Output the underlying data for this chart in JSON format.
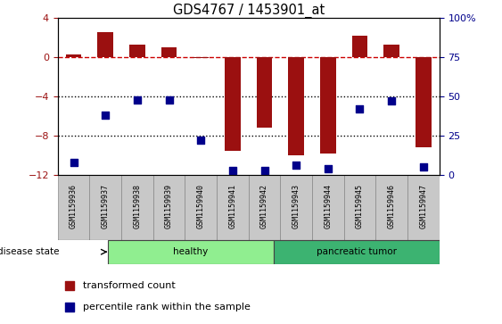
{
  "title": "GDS4767 / 1453901_at",
  "samples": [
    "GSM1159936",
    "GSM1159937",
    "GSM1159938",
    "GSM1159939",
    "GSM1159940",
    "GSM1159941",
    "GSM1159942",
    "GSM1159943",
    "GSM1159944",
    "GSM1159945",
    "GSM1159946",
    "GSM1159947"
  ],
  "transformed_count": [
    0.3,
    2.5,
    1.3,
    1.0,
    -0.05,
    -9.5,
    -7.2,
    -10.0,
    -9.8,
    2.2,
    1.3,
    -9.2
  ],
  "percentile_rank": [
    8,
    38,
    48,
    48,
    22,
    3,
    3,
    6,
    4,
    42,
    47,
    5
  ],
  "groups": [
    {
      "label": "healthy",
      "start": 0,
      "end": 5,
      "color_light": "#C8F5C8",
      "color_dark": "#90EE90"
    },
    {
      "label": "pancreatic tumor",
      "start": 6,
      "end": 11,
      "color_light": "#70E070",
      "color_dark": "#3CB371"
    }
  ],
  "ylim_left": [
    -12,
    4
  ],
  "ylim_right": [
    0,
    100
  ],
  "yticks_left": [
    4,
    0,
    -4,
    -8,
    -12
  ],
  "yticks_right": [
    100,
    75,
    50,
    25,
    0
  ],
  "right_tick_labels": [
    "100%",
    "75",
    "50",
    "25",
    "0"
  ],
  "bar_color": "#9B1010",
  "dot_color": "#00008B",
  "dashed_line_color": "#CC0000",
  "dotted_line_color": "#000000",
  "bar_width": 0.5,
  "dot_size": 30,
  "background_color": "#ffffff",
  "label_box_color": "#C8C8C8"
}
